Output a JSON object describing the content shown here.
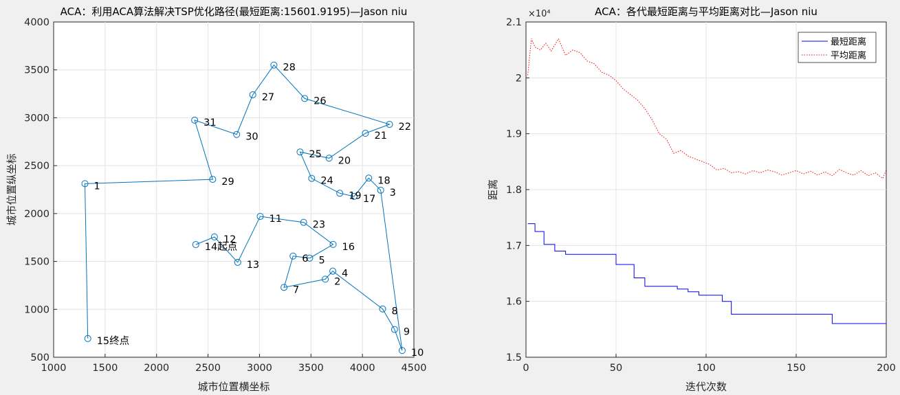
{
  "chart_data": [
    {
      "type": "line",
      "title": "ACA：利用ACA算法解决TSP优化路径(最短距离:15601.9195)—Jason niu",
      "xlabel": "城市位置横坐标",
      "ylabel": "城市位置纵坐标",
      "xlim": [
        1000,
        4500
      ],
      "ylim": [
        500,
        4000
      ],
      "xticks": [
        "1000",
        "1500",
        "2000",
        "2500",
        "3000",
        "3500",
        "4000",
        "4500"
      ],
      "yticks": [
        "500",
        "1000",
        "1500",
        "2000",
        "2500",
        "3000",
        "3500",
        "4000"
      ],
      "grid": true,
      "line_color": "#0072bd",
      "cities": [
        {
          "id": "1",
          "x": 1304,
          "y": 2312
        },
        {
          "id": "2",
          "x": 3639,
          "y": 1315
        },
        {
          "id": "3",
          "x": 4177,
          "y": 2244
        },
        {
          "id": "4",
          "x": 3712,
          "y": 1399
        },
        {
          "id": "5",
          "x": 3488,
          "y": 1535
        },
        {
          "id": "6",
          "x": 3326,
          "y": 1556
        },
        {
          "id": "7",
          "x": 3238,
          "y": 1229
        },
        {
          "id": "8",
          "x": 4196,
          "y": 1004
        },
        {
          "id": "9",
          "x": 4312,
          "y": 790
        },
        {
          "id": "10",
          "x": 4386,
          "y": 570
        },
        {
          "id": "11",
          "x": 3007,
          "y": 1970
        },
        {
          "id": "12",
          "x": 2562,
          "y": 1756
        },
        {
          "id": "13",
          "x": 2788,
          "y": 1491
        },
        {
          "id": "14",
          "x": 2381,
          "y": 1676
        },
        {
          "id": "15",
          "x": 1332,
          "y": 695
        },
        {
          "id": "16",
          "x": 3715,
          "y": 1678
        },
        {
          "id": "17",
          "x": 3918,
          "y": 2179
        },
        {
          "id": "18",
          "x": 4061,
          "y": 2370
        },
        {
          "id": "19",
          "x": 3780,
          "y": 2212
        },
        {
          "id": "20",
          "x": 3676,
          "y": 2578
        },
        {
          "id": "21",
          "x": 4029,
          "y": 2838
        },
        {
          "id": "22",
          "x": 4263,
          "y": 2931
        },
        {
          "id": "23",
          "x": 3429,
          "y": 1908
        },
        {
          "id": "24",
          "x": 3507,
          "y": 2367
        },
        {
          "id": "25",
          "x": 3394,
          "y": 2643
        },
        {
          "id": "26",
          "x": 3439,
          "y": 3201
        },
        {
          "id": "27",
          "x": 2935,
          "y": 3240
        },
        {
          "id": "28",
          "x": 3140,
          "y": 3550
        },
        {
          "id": "29",
          "x": 2545,
          "y": 2357
        },
        {
          "id": "30",
          "x": 2778,
          "y": 2826
        },
        {
          "id": "31",
          "x": 2370,
          "y": 2975
        }
      ],
      "route": [
        "14",
        "12",
        "13",
        "11",
        "23",
        "16",
        "5",
        "6",
        "7",
        "2",
        "4",
        "8",
        "9",
        "10",
        "3",
        "18",
        "17",
        "19",
        "24",
        "25",
        "20",
        "21",
        "22",
        "26",
        "28",
        "27",
        "30",
        "31",
        "29",
        "1",
        "15"
      ],
      "annotations": [
        {
          "text": "起点",
          "at_city": "14"
        },
        {
          "text": "终点",
          "at_city": "15"
        }
      ]
    },
    {
      "type": "line",
      "title": "ACA：各代最短距离与平均距离对比—Jason niu",
      "xlabel": "迭代次数",
      "ylabel": "距离",
      "xlim": [
        0,
        200
      ],
      "ylim": [
        15000,
        21000
      ],
      "y_multiplier": "×10⁴",
      "xticks": [
        "0",
        "50",
        "100",
        "150",
        "200"
      ],
      "yticks": [
        "1.5",
        "1.6",
        "1.7",
        "1.8",
        "1.9",
        "2",
        "2.1"
      ],
      "grid": true,
      "legend_position": "top-right",
      "series": [
        {
          "name": "最短距离",
          "color": "#0000ff",
          "style": "solid",
          "steps": [
            [
              1,
              17390
            ],
            [
              5,
              17250
            ],
            [
              10,
              17020
            ],
            [
              16,
              16900
            ],
            [
              22,
              16840
            ],
            [
              50,
              16660
            ],
            [
              60,
              16420
            ],
            [
              66,
              16270
            ],
            [
              84,
              16220
            ],
            [
              90,
              16170
            ],
            [
              96,
              16110
            ],
            [
              109,
              16000
            ],
            [
              114,
              15770
            ],
            [
              170,
              15602
            ],
            [
              200,
              15602
            ]
          ]
        },
        {
          "name": "平均距离",
          "color": "#ff0000",
          "style": "dotted",
          "x": [
            1,
            3,
            5,
            8,
            11,
            14,
            18,
            22,
            26,
            30,
            34,
            38,
            42,
            46,
            50,
            54,
            58,
            62,
            66,
            70,
            74,
            78,
            82,
            86,
            90,
            94,
            98,
            102,
            106,
            110,
            114,
            118,
            122,
            126,
            130,
            134,
            138,
            142,
            146,
            150,
            154,
            158,
            162,
            166,
            170,
            174,
            178,
            182,
            186,
            190,
            194,
            198,
            200
          ],
          "values": [
            20050,
            20700,
            20550,
            20500,
            20620,
            20480,
            20700,
            20400,
            20500,
            20450,
            20300,
            20250,
            20100,
            20050,
            19950,
            19800,
            19700,
            19600,
            19450,
            19250,
            19000,
            18900,
            18650,
            18700,
            18600,
            18550,
            18500,
            18450,
            18350,
            18380,
            18300,
            18320,
            18280,
            18340,
            18300,
            18350,
            18320,
            18260,
            18300,
            18340,
            18280,
            18330,
            18260,
            18320,
            18250,
            18360,
            18300,
            18260,
            18340,
            18250,
            18300,
            18200,
            18350
          ]
        }
      ]
    }
  ]
}
